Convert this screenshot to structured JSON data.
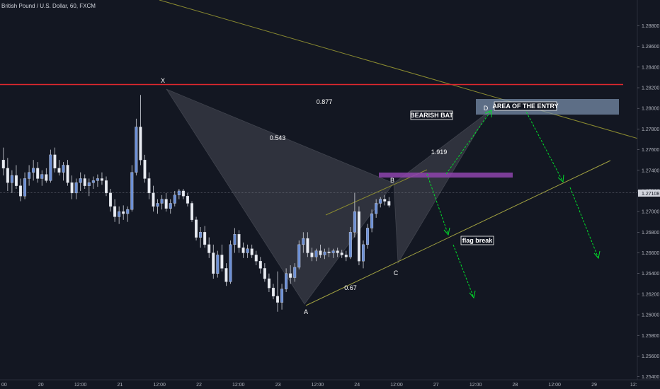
{
  "header": {
    "title": "British Pound / U.S. Dollar, 60, FXCM"
  },
  "chart_data": {
    "type": "candlestick",
    "symbol": "British Pound / U.S. Dollar",
    "timeframe": "60",
    "source": "FXCM",
    "y_ticks": [
      "1.28800",
      "1.28600",
      "1.28400",
      "1.28200",
      "1.28000",
      "1.27800",
      "1.27600",
      "1.27400",
      "1.27200",
      "1.27000",
      "1.26800",
      "1.26600",
      "1.26400",
      "1.26200",
      "1.26000",
      "1.25800",
      "1.25600",
      "1.25400"
    ],
    "x_ticks": [
      "00",
      "20",
      "12:00",
      "21",
      "12:00",
      "22",
      "12:00",
      "23",
      "12:00",
      "24",
      "12:00",
      "27",
      "12:00",
      "28",
      "12:00",
      "29",
      "12:"
    ],
    "last_price": "1.27108",
    "ylim": [
      1.2537,
      1.2905
    ],
    "pattern_points": [
      {
        "label": "X",
        "price": 1.2813
      },
      {
        "label": "A",
        "price": 1.2603
      },
      {
        "label": "B",
        "price": 1.2718
      },
      {
        "label": "C",
        "price": 1.2645
      },
      {
        "label": "D",
        "price": 1.28
      }
    ],
    "ratios": [
      "0.543",
      "0.877",
      "1.919",
      "0.67"
    ],
    "annotations": [
      "BEARISH BAT",
      "AREA OF THE ENTRY",
      "flag break"
    ],
    "levels": {
      "resistance": 1.2816,
      "entry_zone": [
        1.2786,
        1.28
      ],
      "purple_zone": [
        1.27258,
        1.27296
      ]
    },
    "candles": [
      [
        1.275,
        1.2762,
        1.2735,
        1.2742
      ],
      [
        1.2742,
        1.2752,
        1.272,
        1.2728
      ],
      [
        1.2728,
        1.274,
        1.2718,
        1.2735
      ],
      [
        1.2735,
        1.2745,
        1.2722,
        1.2725
      ],
      [
        1.2725,
        1.2732,
        1.271,
        1.2715
      ],
      [
        1.2715,
        1.2738,
        1.2712,
        1.2732
      ],
      [
        1.2732,
        1.2745,
        1.2725,
        1.2738
      ],
      [
        1.2738,
        1.275,
        1.273,
        1.2742
      ],
      [
        1.2742,
        1.2748,
        1.2728,
        1.2732
      ],
      [
        1.2732,
        1.274,
        1.2725,
        1.2736
      ],
      [
        1.2736,
        1.2742,
        1.2728,
        1.273
      ],
      [
        1.273,
        1.276,
        1.2728,
        1.2755
      ],
      [
        1.2755,
        1.2762,
        1.2738,
        1.2742
      ],
      [
        1.2742,
        1.275,
        1.2735,
        1.2738
      ],
      [
        1.2738,
        1.2748,
        1.273,
        1.2745
      ],
      [
        1.2745,
        1.275,
        1.2725,
        1.2728
      ],
      [
        1.2728,
        1.2735,
        1.2712,
        1.2718
      ],
      [
        1.2718,
        1.2732,
        1.2712,
        1.2728
      ],
      [
        1.2728,
        1.2738,
        1.272,
        1.2732
      ],
      [
        1.2732,
        1.2736,
        1.2722,
        1.2725
      ],
      [
        1.2725,
        1.2732,
        1.2715,
        1.2728
      ],
      [
        1.2728,
        1.2734,
        1.2722,
        1.273
      ],
      [
        1.273,
        1.2736,
        1.2724,
        1.2732
      ],
      [
        1.2732,
        1.2738,
        1.2726,
        1.273
      ],
      [
        1.273,
        1.2734,
        1.2715,
        1.2718
      ],
      [
        1.2718,
        1.2722,
        1.27,
        1.2705
      ],
      [
        1.2705,
        1.2712,
        1.269,
        1.2695
      ],
      [
        1.2695,
        1.2705,
        1.2688,
        1.27
      ],
      [
        1.27,
        1.2706,
        1.2692,
        1.2698
      ],
      [
        1.2698,
        1.2705,
        1.269,
        1.2702
      ],
      [
        1.2702,
        1.2745,
        1.27,
        1.2738
      ],
      [
        1.2738,
        1.279,
        1.2735,
        1.2782
      ],
      [
        1.2782,
        1.2813,
        1.2745,
        1.275
      ],
      [
        1.275,
        1.2755,
        1.2728,
        1.2732
      ],
      [
        1.2732,
        1.2738,
        1.2712,
        1.2718
      ],
      [
        1.2718,
        1.2725,
        1.27,
        1.2705
      ],
      [
        1.2705,
        1.2712,
        1.2698,
        1.2708
      ],
      [
        1.2708,
        1.2716,
        1.2702,
        1.2712
      ],
      [
        1.2712,
        1.2718,
        1.27,
        1.2703
      ],
      [
        1.2703,
        1.2712,
        1.2698,
        1.2708
      ],
      [
        1.2708,
        1.272,
        1.2705,
        1.2716
      ],
      [
        1.2716,
        1.2722,
        1.2712,
        1.272
      ],
      [
        1.272,
        1.2722,
        1.2712,
        1.2715
      ],
      [
        1.2715,
        1.2718,
        1.2705,
        1.2708
      ],
      [
        1.2708,
        1.271,
        1.269,
        1.2692
      ],
      [
        1.2692,
        1.2695,
        1.2672,
        1.2675
      ],
      [
        1.2675,
        1.2685,
        1.2665,
        1.268
      ],
      [
        1.268,
        1.2686,
        1.2665,
        1.2668
      ],
      [
        1.2668,
        1.2675,
        1.2655,
        1.266
      ],
      [
        1.266,
        1.2668,
        1.2635,
        1.264
      ],
      [
        1.264,
        1.2662,
        1.2636,
        1.2658
      ],
      [
        1.2658,
        1.2668,
        1.2642,
        1.2645
      ],
      [
        1.2645,
        1.265,
        1.2628,
        1.2632
      ],
      [
        1.2632,
        1.2672,
        1.263,
        1.2668
      ],
      [
        1.2668,
        1.2684,
        1.266,
        1.2678
      ],
      [
        1.2678,
        1.2682,
        1.266,
        1.2665
      ],
      [
        1.2665,
        1.267,
        1.2655,
        1.266
      ],
      [
        1.266,
        1.2668,
        1.2655,
        1.2664
      ],
      [
        1.2664,
        1.2668,
        1.2655,
        1.2658
      ],
      [
        1.2658,
        1.2662,
        1.2648,
        1.2652
      ],
      [
        1.2652,
        1.2656,
        1.264,
        1.2645
      ],
      [
        1.2645,
        1.265,
        1.2632,
        1.2635
      ],
      [
        1.2635,
        1.264,
        1.2622,
        1.2626
      ],
      [
        1.2626,
        1.263,
        1.2615,
        1.2618
      ],
      [
        1.2618,
        1.2642,
        1.2603,
        1.2612
      ],
      [
        1.2612,
        1.263,
        1.2605,
        1.2625
      ],
      [
        1.2625,
        1.2645,
        1.2622,
        1.264
      ],
      [
        1.264,
        1.2648,
        1.263,
        1.2636
      ],
      [
        1.2636,
        1.265,
        1.2632,
        1.2646
      ],
      [
        1.2646,
        1.2672,
        1.2644,
        1.2668
      ],
      [
        1.2668,
        1.268,
        1.266,
        1.2674
      ],
      [
        1.2674,
        1.268,
        1.2656,
        1.266
      ],
      [
        1.266,
        1.2665,
        1.2652,
        1.2656
      ],
      [
        1.2656,
        1.2664,
        1.2652,
        1.2662
      ],
      [
        1.2662,
        1.2668,
        1.2655,
        1.2658
      ],
      [
        1.2658,
        1.2664,
        1.2654,
        1.2661
      ],
      [
        1.2661,
        1.2665,
        1.2656,
        1.266
      ],
      [
        1.266,
        1.2664,
        1.2655,
        1.2662
      ],
      [
        1.2662,
        1.2665,
        1.2656,
        1.266
      ],
      [
        1.266,
        1.2663,
        1.2655,
        1.2658
      ],
      [
        1.2658,
        1.2662,
        1.2652,
        1.2656
      ],
      [
        1.2656,
        1.2685,
        1.2654,
        1.268
      ],
      [
        1.268,
        1.2718,
        1.2675,
        1.27
      ],
      [
        1.27,
        1.2705,
        1.2648,
        1.2652
      ],
      [
        1.2652,
        1.2672,
        1.2645,
        1.2668
      ],
      [
        1.2668,
        1.2688,
        1.2664,
        1.2684
      ],
      [
        1.2684,
        1.2702,
        1.268,
        1.2698
      ],
      [
        1.2698,
        1.2712,
        1.2694,
        1.2708
      ],
      [
        1.2708,
        1.2714,
        1.2704,
        1.2712
      ],
      [
        1.2712,
        1.2716,
        1.2706,
        1.271
      ],
      [
        1.271,
        1.2714,
        1.2704,
        1.2706
      ]
    ]
  }
}
